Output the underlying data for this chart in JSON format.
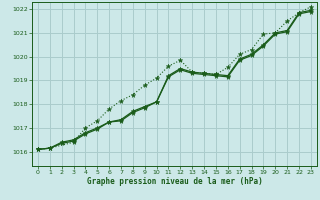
{
  "xlabel": "Graphe pression niveau de la mer (hPa)",
  "ylim": [
    1015.4,
    1022.3
  ],
  "xlim": [
    -0.5,
    23.5
  ],
  "yticks": [
    1016,
    1017,
    1018,
    1019,
    1020,
    1021,
    1022
  ],
  "xticks": [
    0,
    1,
    2,
    3,
    4,
    5,
    6,
    7,
    8,
    9,
    10,
    11,
    12,
    13,
    14,
    15,
    16,
    17,
    18,
    19,
    20,
    21,
    22,
    23
  ],
  "bg_color": "#cce8e8",
  "grid_color": "#aacccc",
  "line_color": "#1a5c1a",
  "line1_x": [
    0,
    1,
    2,
    3,
    4,
    5,
    6,
    7,
    8,
    9,
    10,
    11,
    12,
    13,
    14,
    15,
    16,
    17,
    18,
    19,
    20,
    21,
    22,
    23
  ],
  "line1_y": [
    1016.1,
    1016.15,
    1016.4,
    1016.5,
    1016.8,
    1017.0,
    1017.25,
    1017.35,
    1017.7,
    1017.9,
    1018.1,
    1019.2,
    1019.5,
    1019.35,
    1019.3,
    1019.25,
    1019.2,
    1019.9,
    1020.1,
    1020.5,
    1021.0,
    1021.1,
    1021.85,
    1021.95
  ],
  "line2_x": [
    0,
    1,
    2,
    3,
    4,
    5,
    6,
    7,
    8,
    9,
    10,
    11,
    12,
    13,
    14,
    15,
    16,
    17,
    18,
    19,
    20,
    21,
    22,
    23
  ],
  "line2_y": [
    1016.1,
    1016.15,
    1016.35,
    1016.45,
    1016.75,
    1016.95,
    1017.25,
    1017.3,
    1017.65,
    1017.85,
    1018.1,
    1019.15,
    1019.45,
    1019.3,
    1019.25,
    1019.2,
    1019.15,
    1019.85,
    1020.05,
    1020.45,
    1020.95,
    1021.05,
    1021.8,
    1021.9
  ],
  "line3_x": [
    0,
    1,
    3,
    4,
    5,
    6,
    7,
    8,
    9,
    10,
    11,
    12,
    13,
    14,
    15,
    16,
    17,
    18,
    19,
    20,
    21,
    22,
    23
  ],
  "line3_y": [
    1016.1,
    1016.15,
    1016.4,
    1017.0,
    1017.3,
    1017.8,
    1018.15,
    1018.4,
    1018.8,
    1019.1,
    1019.6,
    1019.85,
    1019.35,
    1019.3,
    1019.25,
    1019.55,
    1020.1,
    1020.3,
    1020.95,
    1021.0,
    1021.5,
    1021.85,
    1022.1
  ]
}
